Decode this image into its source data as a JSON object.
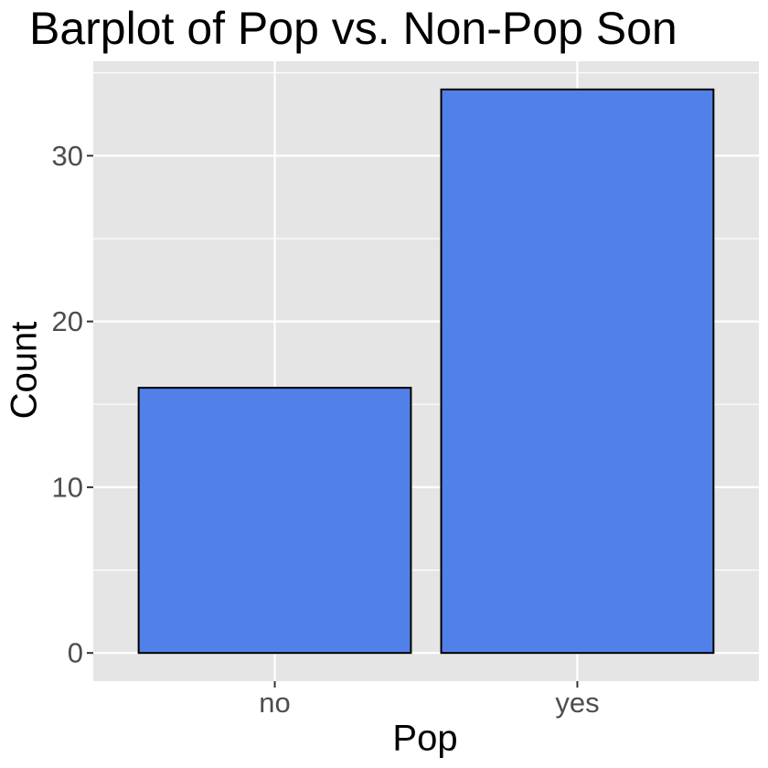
{
  "chart_data": {
    "type": "bar",
    "title": "Barplot of Pop vs. Non-Pop Son",
    "xlabel": "Pop",
    "ylabel": "Count",
    "categories": [
      "no",
      "yes"
    ],
    "values": [
      16,
      34
    ],
    "ylim": [
      -1.7,
      35.7
    ],
    "yticks": [
      0,
      10,
      20,
      30
    ],
    "ytick_labels": [
      "0",
      "10",
      "20",
      "30"
    ],
    "grid": true,
    "legend": "none",
    "bar_color": "#5181E8",
    "bar_edge_color": "#000000",
    "panel_background": "#E5E5E5",
    "grid_color": "#FFFFFF",
    "tick_label_color": "#4D4D4D"
  }
}
